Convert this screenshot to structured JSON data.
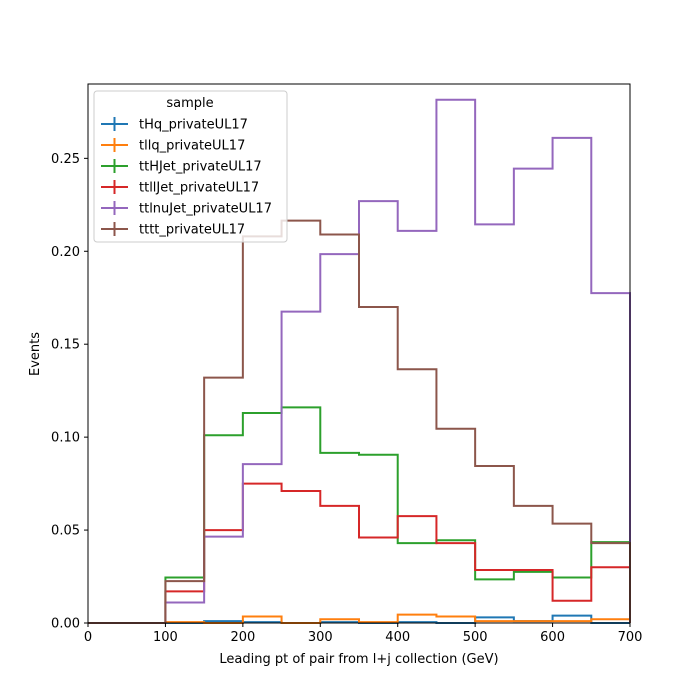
{
  "chart_data": {
    "type": "step-histogram",
    "xlabel": "Leading pt of pair from l+j collection (GeV)",
    "ylabel": "Events",
    "xlim": [
      0,
      700
    ],
    "ylim": [
      0,
      0.29
    ],
    "xticks": [
      "0",
      "100",
      "200",
      "300",
      "400",
      "500",
      "600",
      "700"
    ],
    "yticks": [
      "0.00",
      "0.05",
      "0.10",
      "0.15",
      "0.20",
      "0.25"
    ],
    "legend_title": "sample",
    "legend_position": "top-left",
    "bin_edges": [
      0,
      50,
      100,
      150,
      200,
      250,
      300,
      350,
      400,
      450,
      500,
      550,
      600,
      650,
      700
    ],
    "series": [
      {
        "name": "tHq_privateUL17",
        "color": "#1f77b4",
        "values": [
          0,
          0,
          0,
          0.001,
          0.0005,
          0,
          0.0005,
          0,
          0.0005,
          0,
          0.003,
          0.001,
          0.004,
          0
        ]
      },
      {
        "name": "tllq_privateUL17",
        "color": "#ff7f0e",
        "values": [
          0,
          0,
          0.0005,
          0,
          0.0035,
          0,
          0.002,
          0.0005,
          0.0045,
          0.0035,
          0.001,
          0.001,
          0.001,
          0.002
        ]
      },
      {
        "name": "ttHJet_privateUL17",
        "color": "#2ca02c",
        "values": [
          0,
          0,
          0.0245,
          0.101,
          0.113,
          0.116,
          0.0915,
          0.0905,
          0.043,
          0.0445,
          0.0235,
          0.0275,
          0.0245,
          0.0435
        ]
      },
      {
        "name": "ttllJet_privateUL17",
        "color": "#d62728",
        "values": [
          0,
          0,
          0.017,
          0.05,
          0.075,
          0.071,
          0.063,
          0.046,
          0.0575,
          0.043,
          0.0285,
          0.0285,
          0.012,
          0.03
        ]
      },
      {
        "name": "ttlnuJet_privateUL17",
        "color": "#9467bd",
        "values": [
          0,
          0,
          0.011,
          0.0465,
          0.0855,
          0.1675,
          0.1985,
          0.227,
          0.211,
          0.2815,
          0.2145,
          0.2445,
          0.261,
          0.1775
        ]
      },
      {
        "name": "tttt_privateUL17",
        "color": "#8c564b",
        "values": [
          0,
          0,
          0.0225,
          0.132,
          0.208,
          0.2165,
          0.209,
          0.17,
          0.1365,
          0.1045,
          0.0845,
          0.063,
          0.0535,
          0.043
        ]
      }
    ]
  }
}
